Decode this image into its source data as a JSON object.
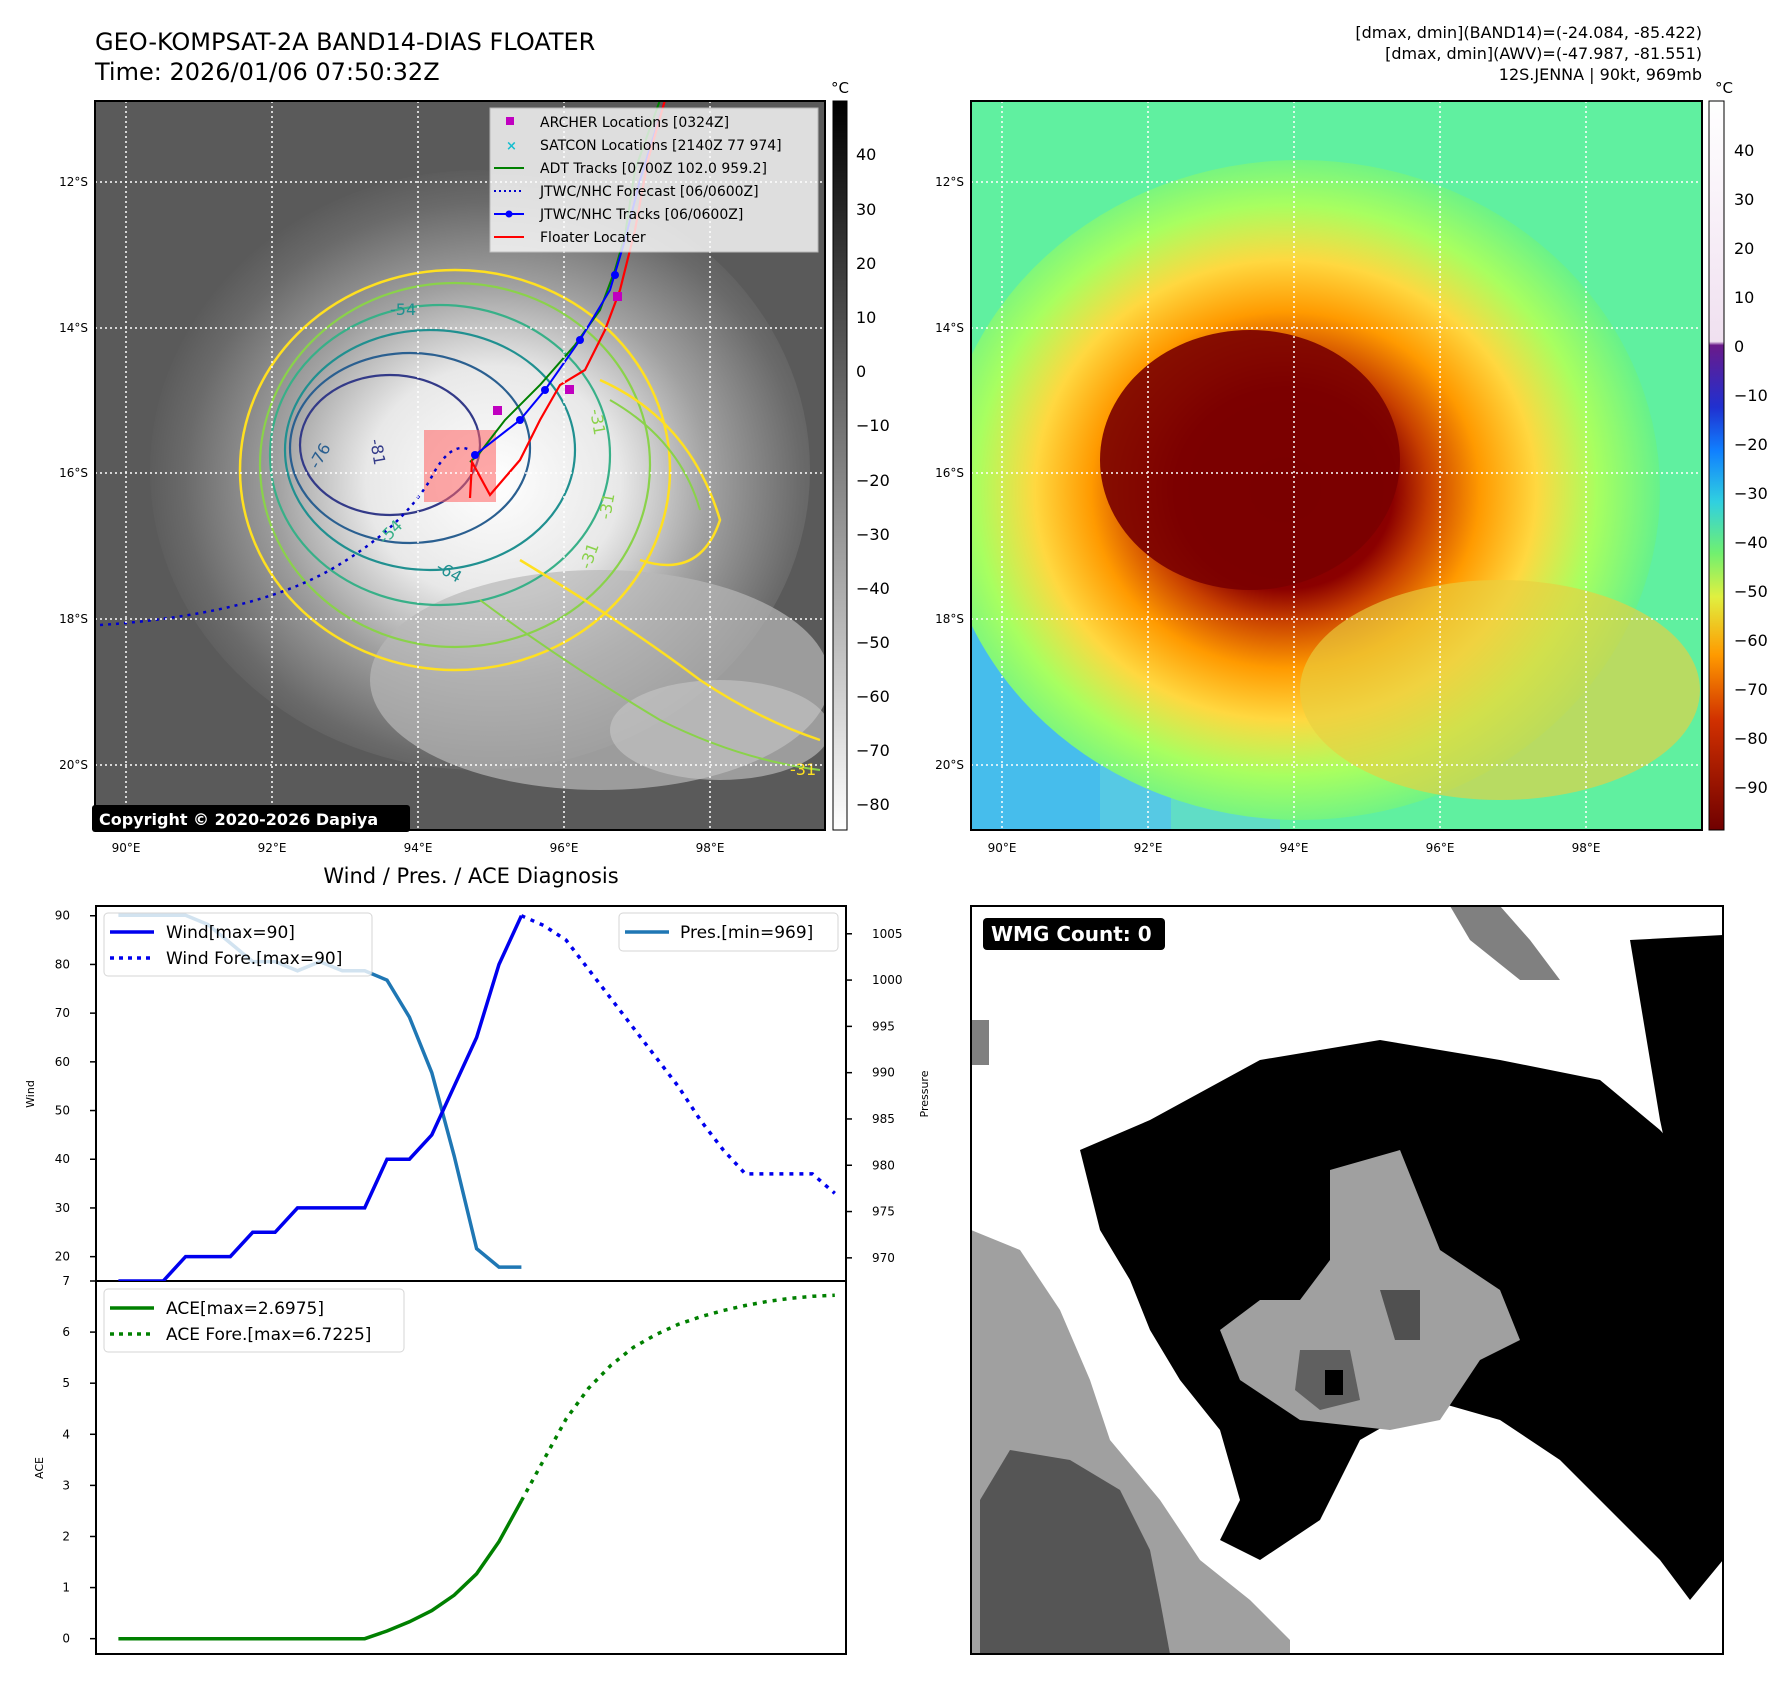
{
  "title": {
    "line1": "GEO-KOMPSAT-2A BAND14-DIAS FLOATER",
    "line2": "Time: 2026/01/06 07:50:32Z"
  },
  "info": {
    "line1": "[dmax, dmin](BAND14)=(-24.084, -85.422)",
    "line2": "[dmax, dmin](AWV)=(-47.987, -81.551)",
    "line3": "12S.JENNA | 90kt, 969mb"
  },
  "copyright": "Copyright © 2020-2026 Dapiya",
  "wmg_label": "WMG Count: 0",
  "map": {
    "x_ticks": [
      "90°E",
      "92°E",
      "94°E",
      "96°E",
      "98°E"
    ],
    "y_ticks": [
      "12°S",
      "14°S",
      "16°S",
      "18°S",
      "20°S"
    ],
    "contour_labels": [
      "-54",
      "-76",
      "-81",
      "-54",
      "-64",
      "-31",
      "-31",
      "-31",
      "-31"
    ],
    "legend": [
      {
        "label": "ARCHER Locations [0324Z]",
        "color": "#c000c0",
        "marker": "square"
      },
      {
        "label": "SATCON Locations [2140Z 77 974]",
        "color": "#17becf",
        "marker": "x"
      },
      {
        "label": "ADT Tracks [0700Z 102.0 959.2]",
        "color": "#008000",
        "marker": "line"
      },
      {
        "label": "JTWC/NHC Forecast [06/0600Z]",
        "color": "#0000cc",
        "marker": "dotted"
      },
      {
        "label": "JTWC/NHC Tracks [06/0600Z]",
        "color": "#0000ff",
        "marker": "line-dot"
      },
      {
        "label": "Floater Locater",
        "color": "#ff0000",
        "marker": "line"
      }
    ]
  },
  "colorbar_gray": {
    "unit": "°C",
    "ticks": [
      "40",
      "30",
      "20",
      "10",
      "0",
      "−10",
      "−20",
      "−30",
      "−40",
      "−50",
      "−60",
      "−70",
      "−80"
    ]
  },
  "colorbar_color": {
    "unit": "°C",
    "ticks": [
      "40",
      "30",
      "20",
      "10",
      "0",
      "−10",
      "−20",
      "−30",
      "−40",
      "−50",
      "−60",
      "−70",
      "−80",
      "−90"
    ]
  },
  "chart_data": {
    "type": "line",
    "title": "Wind / Pres. / ACE Diagnosis",
    "top_panel": {
      "ylabel_left": "Wind",
      "ylabel_right": "Pressure",
      "y_ticks_left": [
        "20",
        "30",
        "40",
        "50",
        "60",
        "70",
        "80",
        "90"
      ],
      "y_ticks_right": [
        "970",
        "975",
        "980",
        "985",
        "990",
        "995",
        "1000",
        "1005"
      ],
      "ylim_left": [
        15,
        92
      ],
      "ylim_right": [
        967.5,
        1008
      ],
      "legend_left": [
        "Wind[max=90]",
        "Wind Fore.[max=90]"
      ],
      "legend_right": [
        "Pres.[min=969]"
      ],
      "series": [
        {
          "name": "Wind",
          "color": "#0000ee",
          "style": "solid",
          "x": [
            0,
            1,
            2,
            3,
            4,
            5,
            6,
            7,
            8,
            9,
            10,
            11,
            12,
            13,
            14,
            15,
            16,
            17,
            18
          ],
          "values": [
            15,
            15,
            15,
            20,
            20,
            20,
            25,
            25,
            30,
            30,
            30,
            30,
            40,
            40,
            45,
            55,
            65,
            80,
            90
          ]
        },
        {
          "name": "Wind Fore.",
          "color": "#0000ee",
          "style": "dotted",
          "x": [
            18,
            19,
            20,
            21,
            22,
            23,
            24,
            25,
            26,
            27,
            28,
            29,
            30,
            31,
            32
          ],
          "values": [
            90,
            88,
            85,
            79,
            73,
            67,
            61,
            55,
            48,
            42,
            37,
            37,
            37,
            37,
            33
          ]
        },
        {
          "name": "Pres.",
          "color": "#1f77b4",
          "style": "solid",
          "x": [
            0,
            1,
            2,
            3,
            4,
            5,
            6,
            7,
            8,
            9,
            10,
            11,
            12,
            13,
            14,
            15,
            16,
            17,
            18
          ],
          "values": [
            1007,
            1007,
            1007,
            1007,
            1006,
            1004,
            1002,
            1002,
            1001,
            1002,
            1001,
            1001,
            1000,
            996,
            990,
            981,
            971,
            969,
            969
          ]
        }
      ]
    },
    "bottom_panel": {
      "ylabel": "ACE",
      "y_ticks": [
        "0",
        "1",
        "2",
        "3",
        "4",
        "5",
        "6",
        "7"
      ],
      "ylim": [
        -0.3,
        7
      ],
      "legend": [
        "ACE[max=2.6975]",
        "ACE Fore.[max=6.7225]"
      ],
      "series": [
        {
          "name": "ACE",
          "color": "#008000",
          "style": "solid",
          "x": [
            0,
            1,
            2,
            3,
            4,
            5,
            6,
            7,
            8,
            9,
            10,
            11,
            12,
            13,
            14,
            15,
            16,
            17,
            18
          ],
          "values": [
            0,
            0,
            0,
            0,
            0,
            0,
            0,
            0,
            0,
            0,
            0,
            0,
            0.15,
            0.33,
            0.55,
            0.85,
            1.27,
            1.9,
            2.6975
          ]
        },
        {
          "name": "ACE Fore.",
          "color": "#008000",
          "style": "dotted",
          "x": [
            18,
            19,
            20,
            21,
            22,
            23,
            24,
            25,
            26,
            27,
            28,
            29,
            30,
            31,
            32
          ],
          "values": [
            2.6975,
            3.5,
            4.3,
            4.9,
            5.35,
            5.7,
            5.95,
            6.15,
            6.3,
            6.42,
            6.52,
            6.6,
            6.66,
            6.7,
            6.7225
          ]
        }
      ]
    },
    "x_range": [
      -1,
      32.5
    ]
  }
}
